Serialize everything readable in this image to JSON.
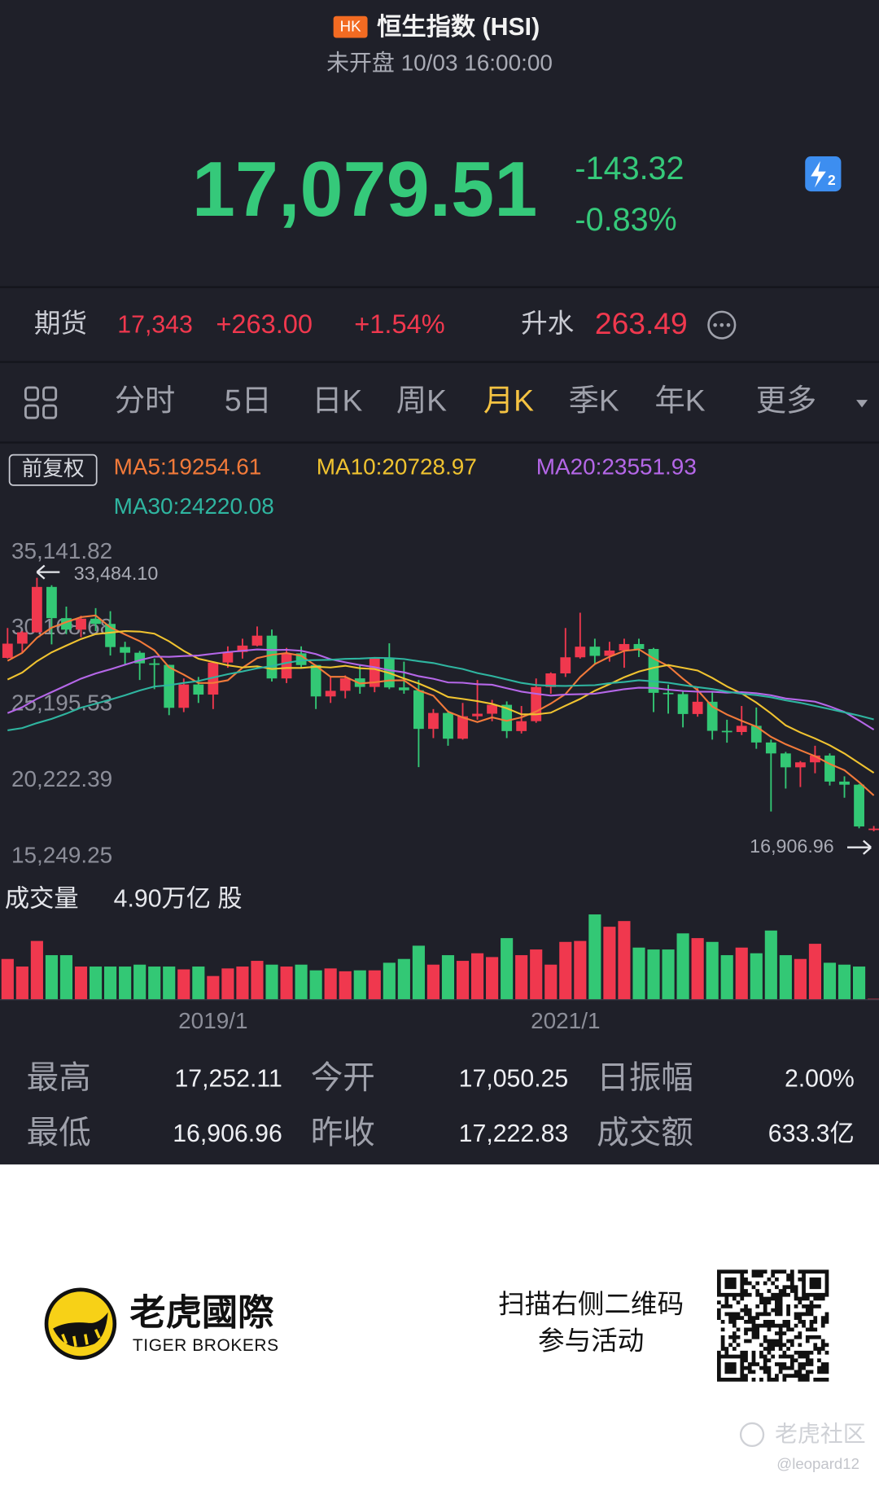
{
  "header": {
    "badge": "HK",
    "name": "恒生指数 (HSI)",
    "status": "未开盘 10/03 16:00:00",
    "level": "2"
  },
  "quote": {
    "price": "17,079.51",
    "change": "-143.32",
    "change_pct": "-0.83%"
  },
  "futures": {
    "label": "期货",
    "price": "17,343",
    "change": "+263.00",
    "change_pct": "+1.54%",
    "premium_label": "升水",
    "premium": "263.49"
  },
  "tabs": [
    "分时",
    "5日",
    "日K",
    "周K",
    "月K",
    "季K",
    "年K",
    "更多"
  ],
  "active_tab": 4,
  "chart_data": {
    "type": "candlestick",
    "adjust_label": "前复权",
    "categories": [
      null,
      null,
      null,
      null,
      null,
      null,
      null,
      null,
      null,
      null,
      null,
      null,
      null,
      null,
      "2019/1",
      null,
      null,
      null,
      null,
      null,
      null,
      null,
      null,
      null,
      null,
      null,
      null,
      null,
      null,
      null,
      null,
      null,
      null,
      null,
      null,
      null,
      null,
      null,
      "2021/1",
      null,
      null,
      null,
      null,
      null,
      null,
      null,
      null,
      null,
      null,
      null,
      null,
      null,
      null,
      null,
      null,
      null,
      null,
      null,
      null,
      null
    ],
    "up_color": "#f0384e",
    "down_color": "#33c875",
    "candles": [
      [
        28246,
        30200,
        28200,
        29177
      ],
      [
        29177,
        30000,
        28600,
        29919
      ],
      [
        29919,
        33484.1,
        29900,
        32887
      ],
      [
        32887,
        33000,
        29130,
        30845
      ],
      [
        30845,
        31600,
        29800,
        30093
      ],
      [
        30093,
        31000,
        29600,
        30808
      ],
      [
        30808,
        31500,
        30000,
        30469
      ],
      [
        30469,
        31300,
        28400,
        28955
      ],
      [
        28955,
        29300,
        27800,
        28583
      ],
      [
        28583,
        28700,
        26800,
        27889
      ],
      [
        27889,
        28200,
        26200,
        27789
      ],
      [
        27789,
        27800,
        24500,
        24980
      ],
      [
        24980,
        26900,
        24700,
        26507
      ],
      [
        26507,
        27000,
        25300,
        25846
      ],
      [
        25846,
        28000,
        24900,
        27942
      ],
      [
        27942,
        29000,
        27600,
        28633
      ],
      [
        28633,
        29500,
        28200,
        29051
      ],
      [
        29051,
        30300,
        29000,
        29699
      ],
      [
        29699,
        30100,
        26700,
        26901
      ],
      [
        26901,
        28900,
        26600,
        28543
      ],
      [
        28543,
        29000,
        27600,
        27778
      ],
      [
        27778,
        27800,
        24900,
        25725
      ],
      [
        25725,
        27000,
        25300,
        26092
      ],
      [
        26092,
        27100,
        25600,
        26907
      ],
      [
        26907,
        27800,
        25900,
        26346
      ],
      [
        26346,
        28300,
        26000,
        28190
      ],
      [
        28190,
        29200,
        26200,
        26313
      ],
      [
        26313,
        28000,
        25900,
        26130
      ],
      [
        26130,
        26800,
        21100,
        23603
      ],
      [
        23603,
        24900,
        23000,
        24644
      ],
      [
        24644,
        24800,
        22500,
        22961
      ],
      [
        22961,
        25300,
        22900,
        24427
      ],
      [
        24427,
        26800,
        24200,
        24595
      ],
      [
        24595,
        25500,
        24100,
        25177
      ],
      [
        25177,
        25400,
        23000,
        23459
      ],
      [
        23459,
        25100,
        23300,
        24107
      ],
      [
        24107,
        26900,
        24000,
        26341
      ],
      [
        26341,
        27300,
        25900,
        27231
      ],
      [
        27231,
        30200,
        27000,
        28284
      ],
      [
        28284,
        31200,
        28200,
        28980
      ],
      [
        28980,
        29500,
        27800,
        28378
      ],
      [
        28378,
        29300,
        28000,
        28725
      ],
      [
        28725,
        29500,
        27600,
        29152
      ],
      [
        29152,
        29500,
        28300,
        28828
      ],
      [
        28828,
        28900,
        24700,
        25961
      ],
      [
        25961,
        26500,
        24600,
        25879
      ],
      [
        25879,
        26100,
        23700,
        24576
      ],
      [
        24576,
        26300,
        24400,
        25377
      ],
      [
        25377,
        26000,
        22900,
        23475
      ],
      [
        23475,
        24200,
        22700,
        23398
      ],
      [
        23398,
        25100,
        23200,
        23802
      ],
      [
        23802,
        25000,
        22300,
        22713
      ],
      [
        22713,
        22900,
        18200,
        21997
      ],
      [
        21997,
        22100,
        19700,
        21089
      ],
      [
        21089,
        21500,
        19800,
        21415
      ],
      [
        21415,
        22500,
        20700,
        21860
      ],
      [
        21860,
        22000,
        19900,
        20157
      ],
      [
        20157,
        20500,
        19100,
        19954
      ],
      [
        19954,
        20000,
        17100,
        17223
      ],
      [
        17050.25,
        17252.11,
        16906.96,
        17079.51
      ]
    ],
    "series": [
      {
        "name": "MA5:19254.61",
        "color": "#f27a3a",
        "values": [
          28050,
          28570,
          29560,
          30220,
          30590,
          30910,
          31020,
          30240,
          29780,
          29340,
          28740,
          27640,
          27150,
          26600,
          26610,
          26780,
          27600,
          28230,
          28440,
          28560,
          28390,
          27730,
          27010,
          27010,
          26570,
          26650,
          26770,
          26780,
          26120,
          25770,
          24730,
          24350,
          24050,
          24360,
          24130,
          24360,
          24740,
          25260,
          25880,
          26990,
          27840,
          28320,
          28700,
          28810,
          28210,
          27710,
          26880,
          26130,
          25060,
          24540,
          24130,
          23750,
          23080,
          22600,
          22200,
          21820,
          21310,
          20900,
          20120,
          19254.61
        ]
      },
      {
        "name": "MA10:20728.97",
        "color": "#f0c330",
        "values": [
          26830,
          27290,
          28030,
          28610,
          29050,
          29480,
          29800,
          29900,
          30000,
          29970,
          29830,
          29330,
          28700,
          28190,
          27980,
          27760,
          27620,
          27690,
          27520,
          27590,
          27590,
          27670,
          27620,
          27730,
          27570,
          27520,
          27250,
          26900,
          26570,
          26170,
          25690,
          25560,
          25420,
          25240,
          24950,
          24550,
          24550,
          24660,
          25120,
          25560,
          26100,
          26530,
          26980,
          27350,
          27600,
          27780,
          27600,
          27420,
          26940,
          26380,
          25920,
          25320,
          24610,
          23830,
          23370,
          22980,
          22530,
          21990,
          21360,
          20728.97
        ]
      },
      {
        "name": "MA20:23551.93",
        "color": "#b567e8",
        "values": [
          24640,
          25020,
          25570,
          26010,
          26450,
          26890,
          27230,
          27500,
          27800,
          28090,
          28330,
          28310,
          28370,
          28400,
          28520,
          28620,
          28710,
          28800,
          28760,
          28780,
          28710,
          28500,
          28160,
          27960,
          27780,
          27640,
          27440,
          27300,
          27050,
          26880,
          26640,
          26620,
          26520,
          26490,
          26260,
          26040,
          25900,
          25780,
          25850,
          25870,
          25900,
          26050,
          26200,
          26300,
          26280,
          26170,
          26080,
          26040,
          26030,
          25970,
          26010,
          25930,
          25800,
          25590,
          25490,
          25380,
          25070,
          24710,
          24150,
          23551.93
        ]
      },
      {
        "name": "MA30:24220.08",
        "color": "#2fb5a0",
        "values": [
          23510,
          23660,
          23980,
          24260,
          24600,
          24990,
          25250,
          25520,
          25800,
          26110,
          26370,
          26460,
          26610,
          26730,
          26960,
          27180,
          27360,
          27570,
          27710,
          27920,
          28080,
          28100,
          28120,
          28180,
          28200,
          28250,
          28230,
          28170,
          28030,
          27910,
          27700,
          27520,
          27250,
          27060,
          26830,
          26610,
          26470,
          26420,
          26410,
          26440,
          26460,
          26590,
          26670,
          26780,
          26710,
          26620,
          26470,
          26330,
          26210,
          26040,
          25900,
          25810,
          25670,
          25470,
          25310,
          25100,
          24900,
          24690,
          24470,
          24220.08
        ]
      }
    ],
    "ylim": [
      15249.25,
      35141.82
    ],
    "yticks": [
      {
        "value": 35141.82,
        "label": "35,141.82"
      },
      {
        "value": 30168.68,
        "label": "30,168.68"
      },
      {
        "value": 25195.53,
        "label": "25,195.53"
      },
      {
        "value": 20222.39,
        "label": "20,222.39"
      },
      {
        "value": 15249.25,
        "label": "15,249.25"
      }
    ],
    "annotations": [
      {
        "text": "33,484.10"
      },
      {
        "text": "16,906.96"
      }
    ],
    "volume_label": "成交量",
    "volume_text": "4.90万亿 股",
    "volume": [
      215,
      175,
      310,
      235,
      235,
      175,
      175,
      175,
      175,
      185,
      175,
      175,
      160,
      175,
      125,
      165,
      175,
      205,
      185,
      175,
      185,
      155,
      165,
      150,
      155,
      155,
      195,
      215,
      285,
      185,
      235,
      205,
      245,
      225,
      325,
      235,
      265,
      185,
      305,
      310,
      450,
      385,
      415,
      275,
      265,
      265,
      350,
      325,
      305,
      235,
      275,
      245,
      365,
      235,
      215,
      295,
      195,
      185,
      175,
      4.9
    ],
    "volume_ylim": [
      0,
      500
    ]
  },
  "stats": [
    [
      {
        "label": "最高",
        "value": "17,252.11"
      },
      {
        "label": "今开",
        "value": "17,050.25"
      },
      {
        "label": "日振幅",
        "value": "2.00%"
      }
    ],
    [
      {
        "label": "最低",
        "value": "16,906.96"
      },
      {
        "label": "昨收",
        "value": "17,222.83"
      },
      {
        "label": "成交额",
        "value": "633.3亿"
      }
    ]
  ],
  "footer": {
    "brand": "老虎國際",
    "brand_en": "TIGER BROKERS",
    "promo_line1": "扫描右侧二维码",
    "promo_line2": "参与活动",
    "watermark": "老虎社区",
    "user": "@leopard12"
  }
}
